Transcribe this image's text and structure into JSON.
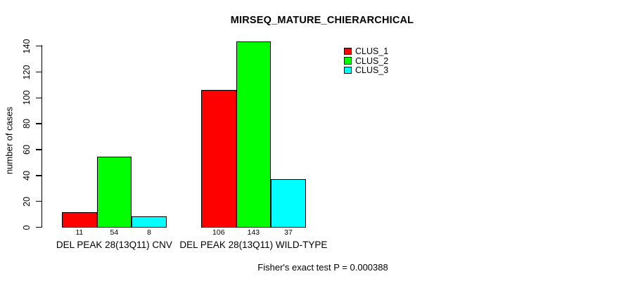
{
  "chart_data": {
    "type": "bar",
    "title": "MIRSEQ_MATURE_CHIERARCHICAL",
    "xlabel": "",
    "ylabel": "number of cases",
    "ylim": [
      0,
      140
    ],
    "yticks": [
      0,
      20,
      40,
      60,
      80,
      100,
      120,
      140
    ],
    "grid": false,
    "legend_position": "top-right",
    "show_value_labels": true,
    "categories": [
      "DEL PEAK 28(13Q11) CNV",
      "DEL PEAK 28(13Q11) WILD-TYPE"
    ],
    "series": [
      {
        "name": "CLUS_1",
        "color": "#ff0000",
        "values": [
          11,
          106
        ]
      },
      {
        "name": "CLUS_2",
        "color": "#00ff00",
        "values": [
          54,
          143
        ]
      },
      {
        "name": "CLUS_3",
        "color": "#00ffff",
        "values": [
          8,
          37
        ]
      }
    ],
    "annotation": "Fisher's exact test P = 0.000388"
  },
  "colors": {
    "background": "#ffffff",
    "axis": "#000000",
    "bar_border": "#000000",
    "clus_1": "#ff0000",
    "clus_2": "#00ff00",
    "clus_3": "#00ffff"
  }
}
